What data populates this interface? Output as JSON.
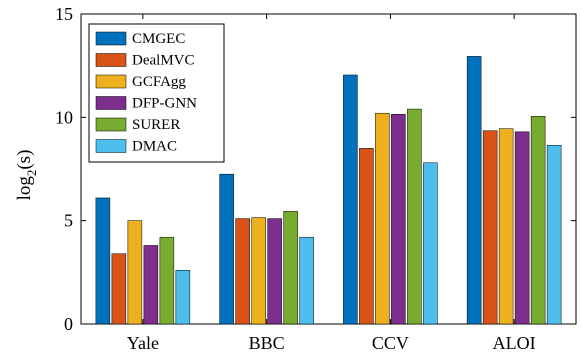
{
  "chart_data": {
    "type": "bar",
    "categories": [
      "Yale",
      "BBC",
      "CCV",
      "ALOI"
    ],
    "series": [
      {
        "name": "CMGEC",
        "color": "#0072BD",
        "values": [
          6.1,
          7.25,
          12.05,
          12.95
        ]
      },
      {
        "name": "DealMVC",
        "color": "#D95319",
        "values": [
          3.4,
          5.1,
          8.5,
          9.35
        ]
      },
      {
        "name": "GCFAgg",
        "color": "#EDB120",
        "values": [
          5.0,
          5.15,
          10.2,
          9.45
        ]
      },
      {
        "name": "DFP-GNN",
        "color": "#7E2F8E",
        "values": [
          3.8,
          5.1,
          10.15,
          9.3
        ]
      },
      {
        "name": "SURER",
        "color": "#77AC30",
        "values": [
          4.2,
          5.45,
          10.4,
          10.05
        ]
      },
      {
        "name": "DMAC",
        "color": "#4DBEEE",
        "values": [
          2.6,
          4.2,
          7.8,
          8.65
        ]
      }
    ],
    "ylabel_base": "log",
    "ylabel_sub": "2",
    "ylabel_rest": "(s)",
    "ylim": [
      0,
      15
    ],
    "yticks": [
      0,
      5,
      10,
      15
    ],
    "legend_position": "top-left",
    "grid": false
  }
}
